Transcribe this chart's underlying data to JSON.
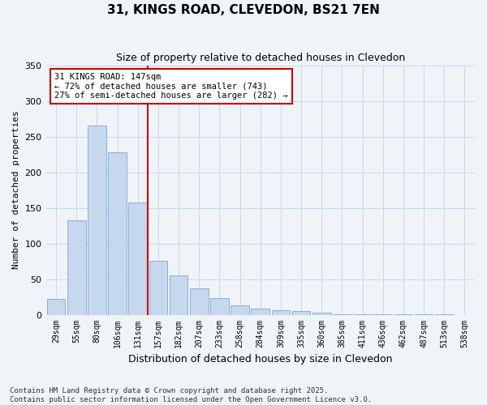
{
  "title": "31, KINGS ROAD, CLEVEDON, BS21 7EN",
  "subtitle": "Size of property relative to detached houses in Clevedon",
  "xlabel": "Distribution of detached houses by size in Clevedon",
  "ylabel": "Number of detached properties",
  "categories": [
    "29sqm",
    "55sqm",
    "80sqm",
    "106sqm",
    "131sqm",
    "157sqm",
    "182sqm",
    "207sqm",
    "233sqm",
    "258sqm",
    "284sqm",
    "309sqm",
    "335sqm",
    "360sqm",
    "385sqm",
    "411sqm",
    "436sqm",
    "462sqm",
    "487sqm",
    "513sqm",
    "538sqm"
  ],
  "values": [
    22,
    133,
    265,
    228,
    157,
    76,
    55,
    37,
    23,
    13,
    9,
    6,
    5,
    3,
    1,
    1,
    1,
    1,
    1,
    1,
    0
  ],
  "bar_color": "#c5d8ee",
  "bar_edge_color": "#7aaad0",
  "vline_x": 4.5,
  "vline_color": "#cc0000",
  "annotation_text": "31 KINGS ROAD: 147sqm\n← 72% of detached houses are smaller (743)\n27% of semi-detached houses are larger (282) →",
  "annotation_box_color": "#ffffff",
  "annotation_box_edge": "#cc0000",
  "ylim": [
    0,
    350
  ],
  "yticks": [
    0,
    50,
    100,
    150,
    200,
    250,
    300,
    350
  ],
  "footer": "Contains HM Land Registry data © Crown copyright and database right 2025.\nContains public sector information licensed under the Open Government Licence v3.0.",
  "bg_color": "#f0f4f8",
  "grid_color": "#c8d8e8",
  "title_fontsize": 11,
  "subtitle_fontsize": 9,
  "annotation_fontsize": 7.5,
  "tick_fontsize": 7,
  "ylabel_fontsize": 8,
  "xlabel_fontsize": 9
}
